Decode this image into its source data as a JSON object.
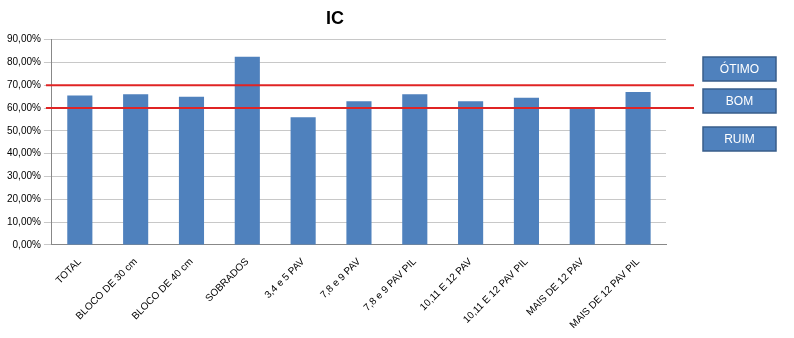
{
  "chart_data": {
    "type": "bar",
    "title": "IC",
    "categories": [
      "TOTAL",
      "BLOCO DE 30 cm",
      "BLOCO DE 40 cm",
      "SOBRADOS",
      "3,4 e 5 PAV",
      "7,8 e 9 PAV",
      "7,8 e 9 PAV PIL",
      "10,11 E 12 PAV",
      "10,11 E 12 PAV PIL",
      "MAIS DE 12 PAV",
      "MAIS DE 12 PAV PIL"
    ],
    "values": [
      65.5,
      66,
      65,
      82.5,
      56,
      63,
      66,
      63,
      64.5,
      60,
      67
    ],
    "color": "#4f81bd",
    "ylim": [
      0,
      90
    ],
    "yticks": [
      {
        "value": 0,
        "label": "0,00%"
      },
      {
        "value": 10,
        "label": "10,00%"
      },
      {
        "value": 20,
        "label": "20,00%"
      },
      {
        "value": 30,
        "label": "30,00%"
      },
      {
        "value": 40,
        "label": "40,00%"
      },
      {
        "value": 50,
        "label": "50,00%"
      },
      {
        "value": 60,
        "label": "60,00%"
      },
      {
        "value": 70,
        "label": "70,00%"
      },
      {
        "value": 80,
        "label": "80,00%"
      },
      {
        "value": 90,
        "label": "90,00%"
      }
    ],
    "grid": true,
    "reference_lines": [
      {
        "value": 70,
        "color": "#e02424"
      },
      {
        "value": 60,
        "color": "#e02424"
      }
    ],
    "annotations": [
      "ÓTIMO",
      "BOM",
      "RUIM"
    ]
  }
}
